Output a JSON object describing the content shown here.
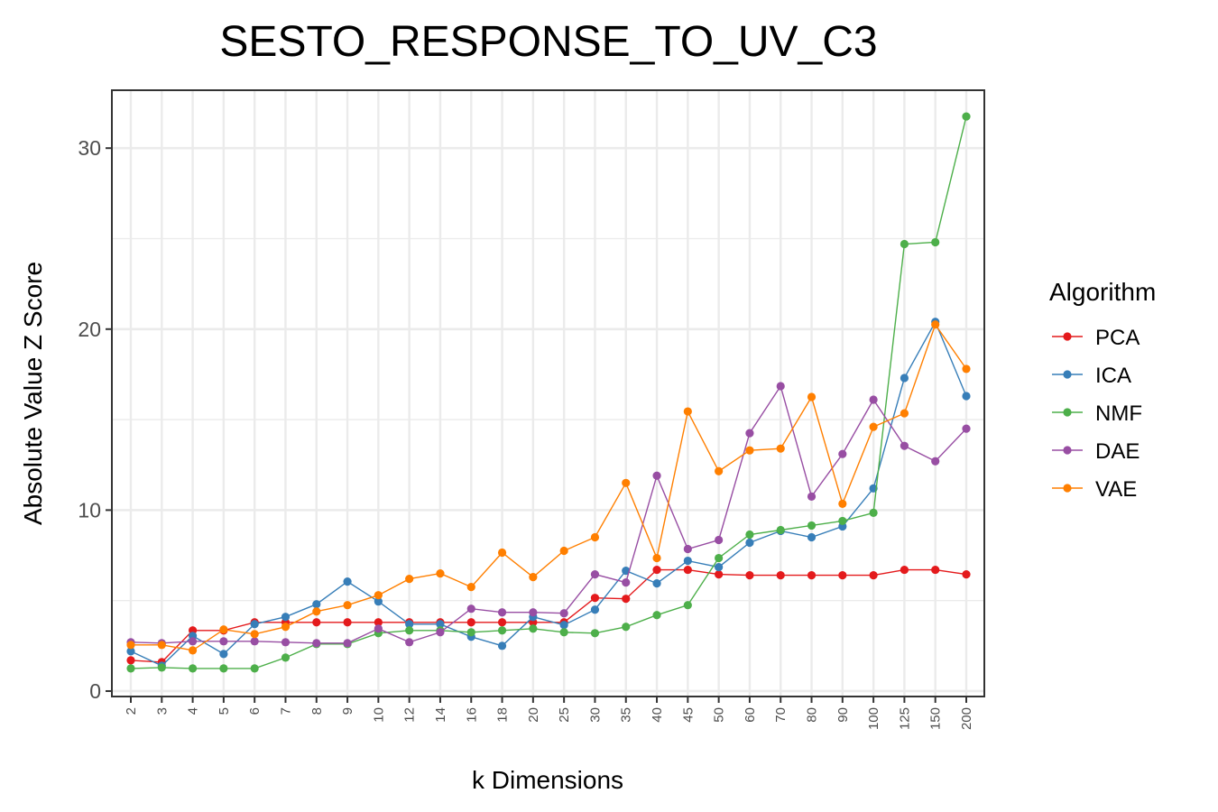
{
  "chart_data": {
    "type": "line",
    "title": "SESTO_RESPONSE_TO_UV_C3",
    "xlabel": "k Dimensions",
    "ylabel": "Absolute Value Z Score",
    "categories": [
      "2",
      "3",
      "4",
      "5",
      "6",
      "7",
      "8",
      "9",
      "10",
      "12",
      "14",
      "16",
      "18",
      "20",
      "25",
      "30",
      "35",
      "40",
      "45",
      "50",
      "60",
      "70",
      "80",
      "90",
      "100",
      "125",
      "150",
      "200"
    ],
    "yticks": [
      "0",
      "10",
      "20",
      "30"
    ],
    "ylim": [
      -0.3,
      33.2
    ],
    "grid": true,
    "legend": {
      "title": "Algorithm",
      "position": "right"
    },
    "series": [
      {
        "name": "PCA",
        "color": "#E41A1C",
        "values": [
          1.7,
          1.6,
          3.35,
          3.35,
          3.8,
          3.8,
          3.8,
          3.8,
          3.8,
          3.8,
          3.8,
          3.8,
          3.8,
          3.8,
          3.8,
          5.15,
          5.1,
          6.7,
          6.7,
          6.45,
          6.4,
          6.4,
          6.4,
          6.4,
          6.4,
          6.7,
          6.7,
          6.45
        ]
      },
      {
        "name": "ICA",
        "color": "#377EB8",
        "values": [
          2.2,
          1.4,
          3.05,
          2.05,
          3.7,
          4.1,
          4.8,
          6.05,
          4.95,
          3.7,
          3.7,
          3.0,
          2.5,
          4.1,
          3.65,
          4.5,
          6.65,
          5.95,
          7.2,
          6.85,
          8.2,
          8.85,
          8.5,
          9.1,
          11.2,
          17.3,
          20.4,
          16.3
        ]
      },
      {
        "name": "NMF",
        "color": "#4DAF4A",
        "values": [
          1.25,
          1.3,
          1.25,
          1.25,
          1.25,
          1.85,
          2.6,
          2.6,
          3.2,
          3.35,
          3.35,
          3.25,
          3.35,
          3.45,
          3.25,
          3.2,
          3.55,
          4.2,
          4.75,
          7.35,
          8.65,
          8.9,
          9.15,
          9.4,
          9.85,
          24.7,
          24.8,
          31.75
        ]
      },
      {
        "name": "DAE",
        "color": "#984EA3",
        "values": [
          2.7,
          2.65,
          2.75,
          2.75,
          2.75,
          2.7,
          2.65,
          2.65,
          3.45,
          2.7,
          3.25,
          4.55,
          4.35,
          4.35,
          4.3,
          6.45,
          6.0,
          11.9,
          7.85,
          8.35,
          14.25,
          16.85,
          10.75,
          13.1,
          16.1,
          13.55,
          12.7,
          14.5
        ]
      },
      {
        "name": "VAE",
        "color": "#FF7F00",
        "values": [
          2.55,
          2.55,
          2.25,
          3.4,
          3.15,
          3.55,
          4.4,
          4.75,
          5.3,
          6.2,
          6.5,
          5.75,
          7.65,
          6.3,
          7.75,
          8.5,
          11.5,
          7.35,
          15.45,
          12.15,
          13.3,
          13.4,
          16.25,
          10.35,
          14.6,
          15.35,
          20.25,
          17.8
        ]
      }
    ]
  }
}
